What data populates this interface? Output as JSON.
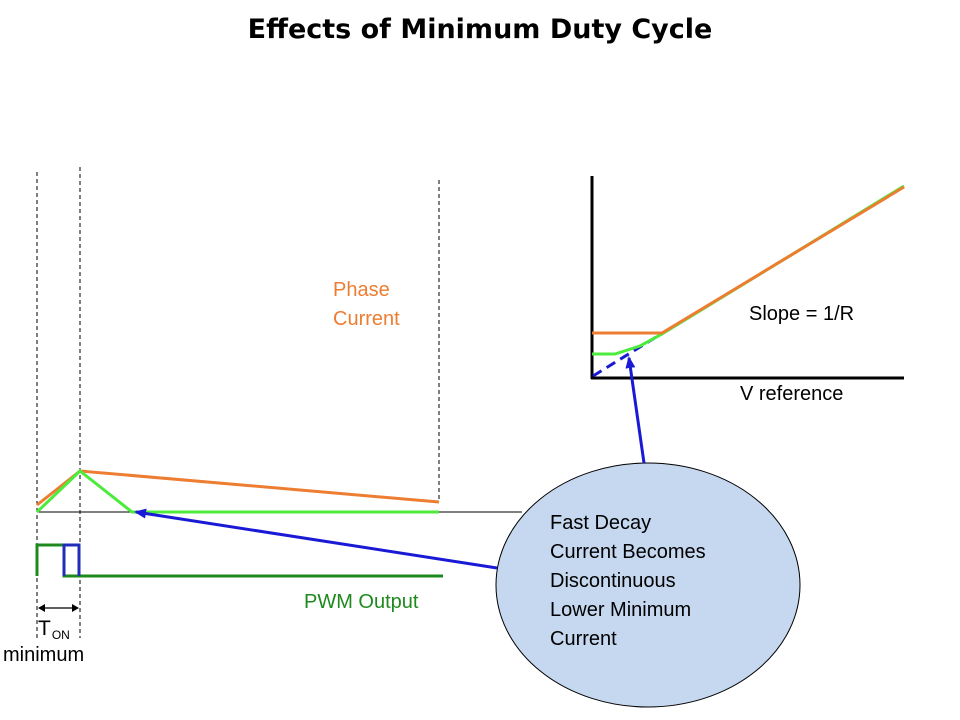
{
  "title": "Effects of Minimum Duty Cycle",
  "labels": {
    "phase_current": [
      "Phase",
      "Current"
    ],
    "pwm_output": "PWM Output",
    "slope": "Slope = 1/R",
    "v_reference": "V reference",
    "ton_main": "T",
    "ton_sub": "ON",
    "ton_minimum": "minimum"
  },
  "callout": {
    "lines": [
      "Fast Decay",
      "Current Becomes",
      "Discontinuous",
      "Lower Minimum",
      "Current"
    ]
  },
  "colors": {
    "phase_current": "#ED7D31",
    "decay_current": "#4CEB3C",
    "pwm_output": "#1E8A1E",
    "pwm_pulse": "#1F2DB8",
    "arrow": "#1A1AD6",
    "callout_fill": "#C5D8EF"
  }
}
